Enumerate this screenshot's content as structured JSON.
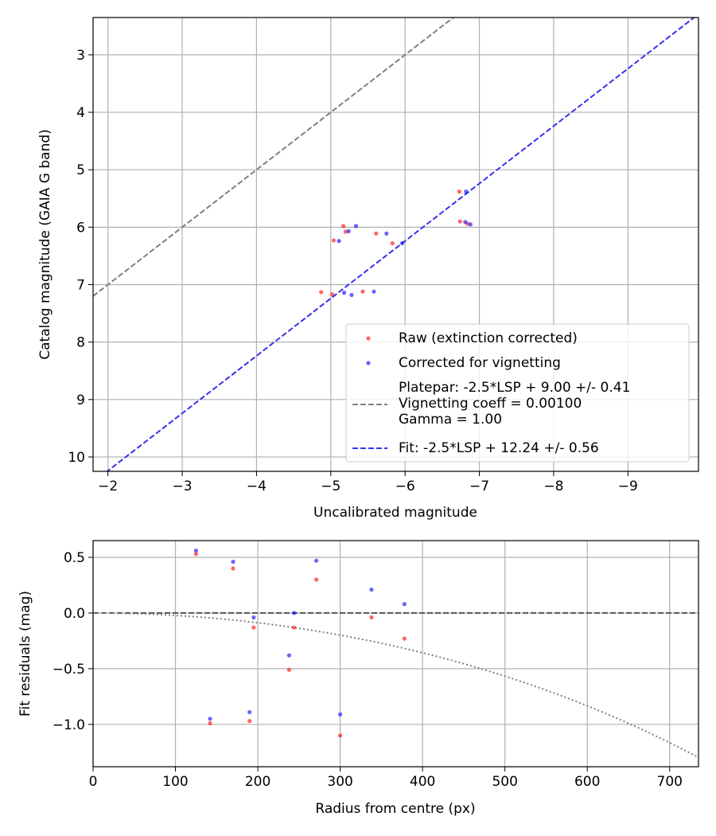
{
  "chart_data": [
    {
      "type": "scatter",
      "xlabel": "Uncalibrated magnitude",
      "ylabel": "Catalog magnitude (GAIA G band)",
      "xlim": [
        -1.8,
        -9.95
      ],
      "ylim": [
        10.25,
        2.35
      ],
      "x_inverted": true,
      "y_inverted": true,
      "xticks": [
        -2,
        -3,
        -4,
        -5,
        -6,
        -7,
        -8,
        -9
      ],
      "xtick_labels": [
        "−2",
        "−3",
        "−4",
        "−5",
        "−6",
        "−7",
        "−8",
        "−9"
      ],
      "yticks": [
        3,
        4,
        5,
        6,
        7,
        8,
        9,
        10
      ],
      "ytick_labels": [
        "3",
        "4",
        "5",
        "6",
        "7",
        "8",
        "9",
        "10"
      ],
      "grid": true,
      "legend_position": "lower-right",
      "series": [
        {
          "name": "Raw (extinction corrected)",
          "kind": "scatter",
          "color": "#ff0000",
          "points": [
            [
              -4.87,
              7.13
            ],
            [
              -5.02,
              7.17
            ],
            [
              -5.43,
              7.12
            ],
            [
              -5.04,
              6.23
            ],
            [
              -5.17,
              5.98
            ],
            [
              -5.2,
              6.08
            ],
            [
              -5.61,
              6.11
            ],
            [
              -5.83,
              6.28
            ],
            [
              -6.73,
              5.38
            ],
            [
              -6.74,
              5.9
            ],
            [
              -6.84,
              5.94
            ]
          ]
        },
        {
          "name": "Corrected for vignetting",
          "kind": "scatter",
          "color": "#0000ff",
          "points": [
            [
              -5.18,
              7.14
            ],
            [
              -5.28,
              7.18
            ],
            [
              -5.58,
              7.12
            ],
            [
              -5.11,
              6.24
            ],
            [
              -5.34,
              5.98
            ],
            [
              -5.24,
              6.07
            ],
            [
              -5.75,
              6.11
            ],
            [
              -5.96,
              6.28
            ],
            [
              -6.82,
              5.38
            ],
            [
              -6.81,
              5.91
            ],
            [
              -6.88,
              5.95
            ]
          ]
        },
        {
          "name": "Platepar: -2.5*LSP + 9.00 +/- 0.41\nVignetting coeff = 0.00100\nGamma = 1.00",
          "kind": "line",
          "style": "dashed",
          "color": "#808080",
          "slope": 1,
          "intercept": 9.0
        },
        {
          "name": "Fit: -2.5*LSP + 12.24 +/- 0.56",
          "kind": "line",
          "style": "dashed",
          "color": "#3333ee",
          "slope": 1,
          "intercept": 12.24
        }
      ]
    },
    {
      "type": "scatter",
      "xlabel": "Radius from centre (px)",
      "ylabel": "Fit residuals (mag)",
      "xlim": [
        0,
        735
      ],
      "ylim": [
        -1.38,
        0.65
      ],
      "xticks": [
        0,
        100,
        200,
        300,
        400,
        500,
        600,
        700
      ],
      "xtick_labels": [
        "0",
        "100",
        "200",
        "300",
        "400",
        "500",
        "600",
        "700"
      ],
      "yticks": [
        -1.0,
        -0.5,
        0.0,
        0.5
      ],
      "ytick_labels": [
        "−1.0",
        "−0.5",
        "0.0",
        "0.5"
      ],
      "grid": true,
      "series": [
        {
          "kind": "scatter",
          "color": "#ff0000",
          "points": [
            [
              125,
              0.53
            ],
            [
              142,
              -0.99
            ],
            [
              170,
              0.4
            ],
            [
              190,
              -0.97
            ],
            [
              195,
              -0.13
            ],
            [
              238,
              -0.51
            ],
            [
              244,
              -0.13
            ],
            [
              271,
              0.3
            ],
            [
              300,
              -1.1
            ],
            [
              338,
              -0.04
            ],
            [
              378,
              -0.23
            ]
          ]
        },
        {
          "kind": "scatter",
          "color": "#0000ff",
          "points": [
            [
              125,
              0.56
            ],
            [
              142,
              -0.95
            ],
            [
              170,
              0.46
            ],
            [
              190,
              -0.89
            ],
            [
              195,
              -0.04
            ],
            [
              238,
              -0.38
            ],
            [
              244,
              0.0
            ],
            [
              271,
              0.47
            ],
            [
              300,
              -0.91
            ],
            [
              338,
              0.21
            ],
            [
              378,
              0.08
            ]
          ]
        },
        {
          "kind": "line",
          "style": "dashed",
          "color": "#555555",
          "y_constant": 0.0
        },
        {
          "kind": "curve",
          "style": "dotted",
          "color": "#808080",
          "formula": "y = -2.5*log10(cos(0.001*r)^4)"
        }
      ]
    }
  ]
}
